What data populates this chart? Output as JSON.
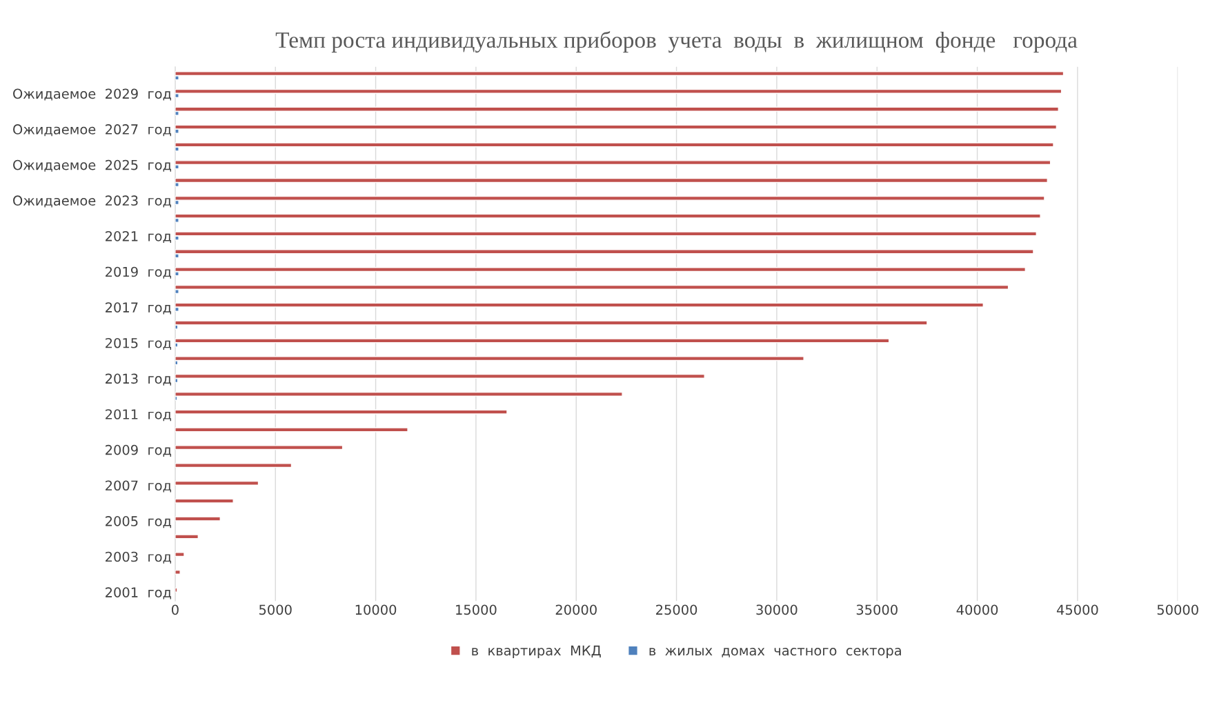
{
  "chart_data": {
    "type": "bar",
    "orientation": "horizontal",
    "title": "Темп роста индивидуальных приборов  учета  воды  в  жилищном  фонде   города",
    "categories": [
      null,
      "Ожидаемое  2029  год",
      null,
      "Ожидаемое  2027  год",
      null,
      "Ожидаемое  2025  год",
      null,
      "Ожидаемое  2023  год",
      null,
      "2021  год",
      null,
      "2019  год",
      null,
      "2017  год",
      null,
      "2015  год",
      null,
      "2013  год",
      null,
      "2011  год",
      null,
      "2009  год",
      null,
      "2007  год",
      null,
      "2005  год",
      null,
      "2003  год",
      null,
      "2001  год"
    ],
    "series": [
      {
        "name": "в  квартирах  МКД",
        "color": "#c0504d",
        "values": [
          44300,
          44200,
          44050,
          43950,
          43800,
          43650,
          43500,
          43350,
          43150,
          42950,
          42800,
          42400,
          41550,
          40300,
          37500,
          35600,
          31350,
          26400,
          22300,
          16550,
          11600,
          8350,
          5800,
          4150,
          2900,
          2250,
          1150,
          450,
          250,
          100
        ]
      },
      {
        "name": "в  жилых  домах  частного  сектора",
        "color": "#4f81bd",
        "values": [
          180,
          180,
          180,
          180,
          180,
          180,
          180,
          180,
          180,
          180,
          180,
          180,
          180,
          180,
          130,
          130,
          130,
          130,
          100,
          null,
          null,
          null,
          null,
          null,
          null,
          null,
          null,
          null,
          null,
          null
        ]
      }
    ],
    "xlim": [
      0,
      50000
    ],
    "xticks": [
      0,
      5000,
      10000,
      15000,
      20000,
      25000,
      30000,
      35000,
      40000,
      45000,
      50000
    ],
    "grid": "x",
    "legend": "bottom"
  }
}
